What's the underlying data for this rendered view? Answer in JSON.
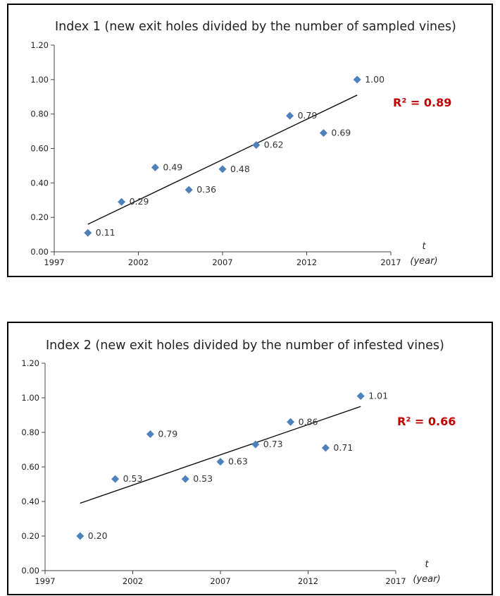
{
  "chart_data": [
    {
      "type": "scatter",
      "title": "Index 1 (new exit holes divided by the number of sampled vines)",
      "xlabel_symbol": "t",
      "xlabel_unit": "(year)",
      "xlim": [
        1997,
        2017
      ],
      "ylim": [
        0,
        1.2
      ],
      "x_ticks": [
        "1997",
        "2002",
        "2007",
        "2012",
        "2017"
      ],
      "y_ticks": [
        "0.00",
        "0.20",
        "0.40",
        "0.60",
        "0.80",
        "1.00",
        "1.20"
      ],
      "points": [
        {
          "x": 1999,
          "y": 0.11,
          "label": "0.11"
        },
        {
          "x": 2001,
          "y": 0.29,
          "label": "0.29"
        },
        {
          "x": 2003,
          "y": 0.49,
          "label": "0.49"
        },
        {
          "x": 2005,
          "y": 0.36,
          "label": "0.36"
        },
        {
          "x": 2007,
          "y": 0.48,
          "label": "0.48"
        },
        {
          "x": 2009,
          "y": 0.62,
          "label": "0.62"
        },
        {
          "x": 2011,
          "y": 0.79,
          "label": "0.79"
        },
        {
          "x": 2013,
          "y": 0.69,
          "label": "0.69"
        },
        {
          "x": 2015,
          "y": 1.0,
          "label": "1.00"
        }
      ],
      "trendline": {
        "type": "linear",
        "x": [
          1999,
          2015
        ],
        "y": [
          0.16,
          0.91
        ]
      },
      "r_squared_text": "R² = 0.89",
      "grid": false,
      "marker_color": "#4f81bd",
      "annotation_color": "#c00000"
    },
    {
      "type": "scatter",
      "title": "Index 2 (new exit holes divided by the number of infested vines)",
      "xlabel_symbol": "t",
      "xlabel_unit": "(year)",
      "xlim": [
        1997,
        2017
      ],
      "ylim": [
        0,
        1.2
      ],
      "x_ticks": [
        "1997",
        "2002",
        "2007",
        "2012",
        "2017"
      ],
      "y_ticks": [
        "0.00",
        "0.20",
        "0.40",
        "0.60",
        "0.80",
        "1.00",
        "1.20"
      ],
      "points": [
        {
          "x": 1999,
          "y": 0.2,
          "label": "0.20"
        },
        {
          "x": 2001,
          "y": 0.53,
          "label": "0.53"
        },
        {
          "x": 2003,
          "y": 0.79,
          "label": "0.79"
        },
        {
          "x": 2005,
          "y": 0.53,
          "label": "0.53"
        },
        {
          "x": 2007,
          "y": 0.63,
          "label": "0.63"
        },
        {
          "x": 2009,
          "y": 0.73,
          "label": "0.73"
        },
        {
          "x": 2011,
          "y": 0.86,
          "label": "0.86"
        },
        {
          "x": 2013,
          "y": 0.71,
          "label": "0.71"
        },
        {
          "x": 2015,
          "y": 1.01,
          "label": "1.01"
        }
      ],
      "trendline": {
        "type": "linear",
        "x": [
          1999,
          2015
        ],
        "y": [
          0.39,
          0.95
        ]
      },
      "r_squared_text": "R² = 0.66",
      "grid": false,
      "marker_color": "#4f81bd",
      "annotation_color": "#c00000"
    }
  ]
}
